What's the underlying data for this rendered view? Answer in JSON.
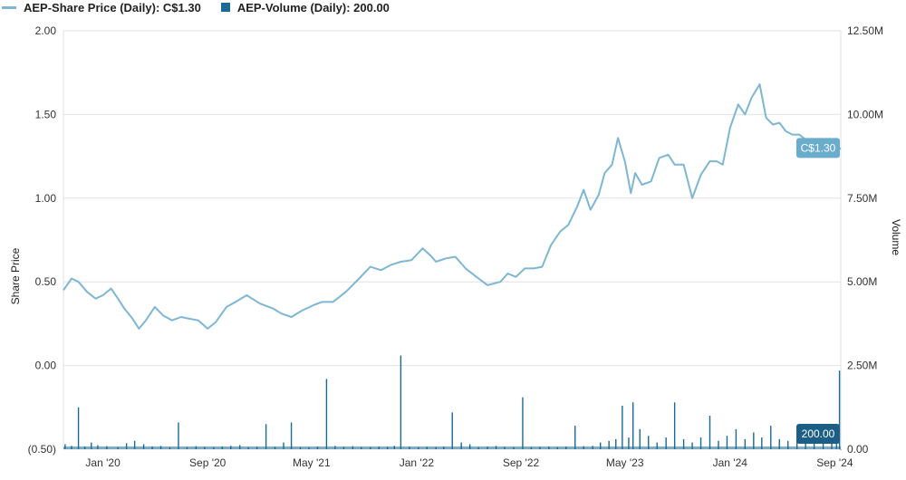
{
  "legend": {
    "price_label": "AEP-Share Price (Daily): C$1.30",
    "volume_label": "AEP-Volume (Daily): 200.00"
  },
  "colors": {
    "price_line": "#7db7d3",
    "volume_bar": "#1a6a96",
    "price_flag": "#6aaccc",
    "volume_flag": "#1b5f86",
    "grid": "#e2e2e2"
  },
  "chart_data": {
    "type": "line",
    "title": "",
    "ylabel_left": "Share Price",
    "ylabel_right": "Volume",
    "y_left_ticks": [
      "2.00",
      "1.50",
      "1.00",
      "0.50",
      "0.00",
      "(0.50)"
    ],
    "y_left_range": [
      -0.5,
      2.0
    ],
    "y_right_ticks": [
      "12.50M",
      "10.00M",
      "7.50M",
      "5.00M",
      "2.50M",
      "0.00"
    ],
    "y_right_range": [
      0,
      12500000
    ],
    "x_ticks": [
      "Jan '20",
      "Sep '20",
      "May '21",
      "Jan '22",
      "Sep '22",
      "May '23",
      "Jan '24",
      "Sep '24"
    ],
    "x_range": [
      "2019-10-01",
      "2024-09-15"
    ],
    "grid": true,
    "legend_position": "top-left",
    "series": [
      {
        "name": "AEP-Share Price (Daily)",
        "kind": "line",
        "axis": "left",
        "x": [
          "2019-10-01",
          "2019-10-20",
          "2019-11-05",
          "2019-11-25",
          "2019-12-15",
          "2020-01-01",
          "2020-01-20",
          "2020-02-05",
          "2020-02-20",
          "2020-03-10",
          "2020-03-25",
          "2020-04-10",
          "2020-05-01",
          "2020-05-20",
          "2020-06-10",
          "2020-07-01",
          "2020-07-20",
          "2020-08-10",
          "2020-09-01",
          "2020-09-20",
          "2020-10-15",
          "2020-11-05",
          "2020-12-01",
          "2021-01-01",
          "2021-02-01",
          "2021-02-20",
          "2021-03-15",
          "2021-04-10",
          "2021-05-05",
          "2021-05-25",
          "2021-06-20",
          "2021-07-20",
          "2021-08-20",
          "2021-09-15",
          "2021-10-10",
          "2021-11-01",
          "2021-11-25",
          "2021-12-20",
          "2022-01-15",
          "2022-02-01",
          "2022-02-15",
          "2022-03-10",
          "2022-04-01",
          "2022-04-25",
          "2022-05-20",
          "2022-06-15",
          "2022-07-15",
          "2022-08-01",
          "2022-08-20",
          "2022-09-10",
          "2022-10-01",
          "2022-10-20",
          "2022-11-10",
          "2022-12-01",
          "2022-12-20",
          "2023-01-10",
          "2023-01-25",
          "2023-02-10",
          "2023-03-01",
          "2023-03-15",
          "2023-04-01",
          "2023-04-15",
          "2023-05-01",
          "2023-05-15",
          "2023-05-25",
          "2023-06-10",
          "2023-07-01",
          "2023-07-20",
          "2023-08-10",
          "2023-08-25",
          "2023-09-15",
          "2023-10-05",
          "2023-10-25",
          "2023-11-15",
          "2023-12-01",
          "2023-12-15",
          "2024-01-01",
          "2024-01-20",
          "2024-02-05",
          "2024-02-20",
          "2024-03-10",
          "2024-03-25",
          "2024-04-10",
          "2024-04-25",
          "2024-05-10",
          "2024-05-25",
          "2024-06-10",
          "2024-06-25",
          "2024-07-10",
          "2024-07-25",
          "2024-08-10",
          "2024-08-25",
          "2024-09-05",
          "2024-09-15"
        ],
        "values": [
          0.45,
          0.52,
          0.5,
          0.44,
          0.4,
          0.42,
          0.46,
          0.4,
          0.34,
          0.28,
          0.22,
          0.27,
          0.35,
          0.3,
          0.27,
          0.29,
          0.28,
          0.27,
          0.22,
          0.26,
          0.35,
          0.38,
          0.42,
          0.37,
          0.34,
          0.31,
          0.29,
          0.33,
          0.36,
          0.38,
          0.38,
          0.44,
          0.52,
          0.59,
          0.57,
          0.6,
          0.62,
          0.63,
          0.7,
          0.66,
          0.62,
          0.64,
          0.65,
          0.58,
          0.53,
          0.48,
          0.5,
          0.55,
          0.53,
          0.58,
          0.58,
          0.59,
          0.72,
          0.8,
          0.84,
          0.95,
          1.05,
          0.93,
          1.02,
          1.15,
          1.2,
          1.36,
          1.22,
          1.03,
          1.15,
          1.08,
          1.1,
          1.24,
          1.26,
          1.2,
          1.2,
          1.0,
          1.14,
          1.22,
          1.22,
          1.2,
          1.42,
          1.56,
          1.5,
          1.6,
          1.68,
          1.48,
          1.44,
          1.45,
          1.4,
          1.38,
          1.38,
          1.35,
          1.32,
          1.25,
          1.28,
          1.3,
          1.28,
          1.3
        ]
      },
      {
        "name": "AEP-Volume (Daily)",
        "kind": "bar",
        "axis": "right",
        "x": [
          "2019-10-05",
          "2019-10-20",
          "2019-11-05",
          "2019-11-20",
          "2019-12-05",
          "2019-12-20",
          "2020-01-10",
          "2020-02-05",
          "2020-02-25",
          "2020-03-15",
          "2020-04-05",
          "2020-04-25",
          "2020-05-15",
          "2020-06-05",
          "2020-06-25",
          "2020-07-15",
          "2020-08-05",
          "2020-08-25",
          "2020-09-15",
          "2020-10-05",
          "2020-10-25",
          "2020-11-15",
          "2020-12-05",
          "2020-12-25",
          "2021-01-15",
          "2021-02-05",
          "2021-02-25",
          "2021-03-15",
          "2021-04-05",
          "2021-04-25",
          "2021-05-15",
          "2021-06-05",
          "2021-06-25",
          "2021-07-15",
          "2021-08-05",
          "2021-08-25",
          "2021-09-15",
          "2021-10-05",
          "2021-10-25",
          "2021-11-10",
          "2021-11-25",
          "2021-12-15",
          "2022-01-05",
          "2022-01-25",
          "2022-02-15",
          "2022-03-05",
          "2022-03-25",
          "2022-04-15",
          "2022-05-05",
          "2022-05-25",
          "2022-06-15",
          "2022-07-05",
          "2022-07-25",
          "2022-08-15",
          "2022-09-05",
          "2022-09-25",
          "2022-10-15",
          "2022-11-05",
          "2022-11-25",
          "2022-12-15",
          "2023-01-05",
          "2023-01-25",
          "2023-02-15",
          "2023-03-05",
          "2023-03-25",
          "2023-04-10",
          "2023-04-25",
          "2023-05-10",
          "2023-05-20",
          "2023-06-05",
          "2023-06-25",
          "2023-07-15",
          "2023-08-05",
          "2023-08-25",
          "2023-09-15",
          "2023-10-05",
          "2023-10-25",
          "2023-11-15",
          "2023-12-05",
          "2023-12-25",
          "2024-01-15",
          "2024-02-05",
          "2024-02-25",
          "2024-03-15",
          "2024-04-05",
          "2024-04-25",
          "2024-05-15",
          "2024-06-05",
          "2024-06-25",
          "2024-07-15",
          "2024-08-05",
          "2024-08-25",
          "2024-09-05",
          "2024-09-12",
          "2024-09-15"
        ],
        "values": [
          150000,
          100000,
          1250000,
          80000,
          200000,
          120000,
          90000,
          60000,
          180000,
          250000,
          150000,
          80000,
          100000,
          60000,
          800000,
          60000,
          90000,
          70000,
          60000,
          80000,
          100000,
          120000,
          60000,
          70000,
          750000,
          70000,
          200000,
          800000,
          60000,
          50000,
          80000,
          2100000,
          100000,
          70000,
          90000,
          60000,
          60000,
          80000,
          70000,
          100000,
          2800000,
          80000,
          60000,
          70000,
          60000,
          80000,
          1100000,
          200000,
          150000,
          60000,
          80000,
          100000,
          70000,
          60000,
          1550000,
          60000,
          70000,
          80000,
          60000,
          80000,
          700000,
          90000,
          100000,
          200000,
          250000,
          300000,
          1300000,
          350000,
          1400000,
          600000,
          400000,
          200000,
          350000,
          1400000,
          300000,
          200000,
          350000,
          1000000,
          250000,
          400000,
          600000,
          300000,
          500000,
          350000,
          700000,
          300000,
          250000,
          400000,
          300000,
          350000,
          250000,
          400000,
          350000,
          2350000,
          200
        ]
      }
    ],
    "annotations": [
      {
        "label": "C$1.30",
        "series": "AEP-Share Price (Daily)"
      },
      {
        "label": "200.00",
        "series": "AEP-Volume (Daily)"
      }
    ]
  }
}
